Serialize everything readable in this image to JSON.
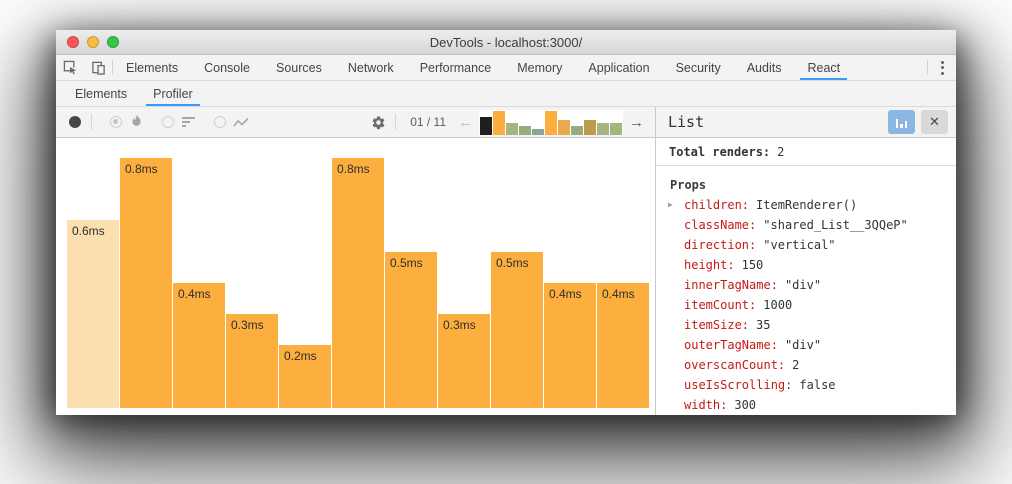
{
  "window": {
    "title": "DevTools - localhost:3000/",
    "traffic_light_colors": {
      "close": "#fc5753",
      "minimize": "#fdbc40",
      "zoom": "#33c748"
    }
  },
  "main_tabs": {
    "left_icons": [
      "inspect-element-icon",
      "device-toolbar-icon"
    ],
    "items": [
      {
        "label": "Elements",
        "selected": false
      },
      {
        "label": "Console",
        "selected": false
      },
      {
        "label": "Sources",
        "selected": false
      },
      {
        "label": "Network",
        "selected": false
      },
      {
        "label": "Performance",
        "selected": false
      },
      {
        "label": "Memory",
        "selected": false
      },
      {
        "label": "Application",
        "selected": false
      },
      {
        "label": "Security",
        "selected": false
      },
      {
        "label": "Audits",
        "selected": false
      },
      {
        "label": "React",
        "selected": true
      }
    ],
    "right_icon": "kebab-menu-icon",
    "accent_color": "#3b99fc"
  },
  "sub_tabs": {
    "items": [
      {
        "label": "Elements",
        "selected": false
      },
      {
        "label": "Profiler",
        "selected": true
      }
    ]
  },
  "toolbar": {
    "record_icon": "record-circle-icon",
    "view_modes": [
      {
        "name": "flamegraph",
        "icon": "flame-icon",
        "selected": true
      },
      {
        "name": "ranked",
        "icon": "ranked-bars-icon",
        "selected": false
      },
      {
        "name": "interactions",
        "icon": "line-chart-icon",
        "selected": false
      }
    ],
    "settings_icon": "gear-icon",
    "snapshot_position": "01 / 11",
    "prev_icon": "left-arrow-icon",
    "prev_glyph": "←",
    "next_icon": "right-arrow-icon",
    "next_glyph": "→"
  },
  "chart_data": {
    "type": "bar",
    "values": [
      0.6,
      0.8,
      0.4,
      0.3,
      0.2,
      0.8,
      0.5,
      0.3,
      0.5,
      0.4,
      0.4
    ],
    "labels": [
      "0.6ms",
      "0.8ms",
      "0.4ms",
      "0.3ms",
      "0.2ms",
      "0.8ms",
      "0.5ms",
      "0.3ms",
      "0.5ms",
      "0.4ms",
      "0.4ms"
    ],
    "unit": "ms",
    "ylim": [
      0,
      0.8
    ],
    "grid": false,
    "selected_index": 0,
    "bar_color": "#FCAE3F",
    "selected_bar_color": "#FBDFAE"
  },
  "mini_chart": {
    "type": "bar",
    "values": [
      0.6,
      0.8,
      0.4,
      0.3,
      0.2,
      0.8,
      0.5,
      0.3,
      0.5,
      0.4,
      0.4
    ],
    "colors": [
      "#1f1f1f",
      "#fbae3d",
      "#a4b57e",
      "#97ad7f",
      "#85a794",
      "#fbae3d",
      "#eba94f",
      "#97ad7f",
      "#bd9b4e",
      "#a4b57e",
      "#a4b57e"
    ]
  },
  "details_panel": {
    "title": "List",
    "chart_button_icon": "bar-chart-icon",
    "close_icon": "close-icon",
    "close_glyph": "✕",
    "total_renders_label": "Total renders:",
    "total_renders_value": "2",
    "props_header": "Props",
    "key_color": "#c41a16",
    "props": [
      {
        "key": "children",
        "value": "ItemRenderer()",
        "expandable": true
      },
      {
        "key": "className",
        "value": "\"shared_List__3QQeP\"",
        "expandable": false
      },
      {
        "key": "direction",
        "value": "\"vertical\"",
        "expandable": false
      },
      {
        "key": "height",
        "value": "150",
        "expandable": false
      },
      {
        "key": "innerTagName",
        "value": "\"div\"",
        "expandable": false
      },
      {
        "key": "itemCount",
        "value": "1000",
        "expandable": false
      },
      {
        "key": "itemSize",
        "value": "35",
        "expandable": false
      },
      {
        "key": "outerTagName",
        "value": "\"div\"",
        "expandable": false
      },
      {
        "key": "overscanCount",
        "value": "2",
        "expandable": false
      },
      {
        "key": "useIsScrolling",
        "value": "false",
        "expandable": false
      },
      {
        "key": "width",
        "value": "300",
        "expandable": false
      }
    ]
  }
}
